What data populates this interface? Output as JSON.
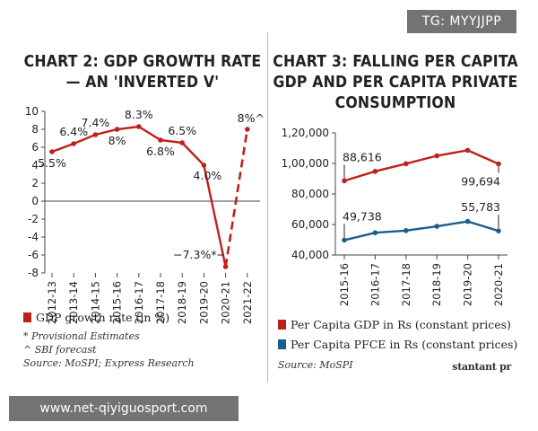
{
  "chart_data": [
    {
      "type": "line",
      "title_line1": "CHART 2: GDP GROWTH RATE",
      "title_line2": "— AN 'INVERTED V'",
      "categories": [
        "2012-13",
        "2013-14",
        "2014-15",
        "2015-16",
        "2016-17",
        "2017-18",
        "2018-19",
        "2019-20",
        "2020-21",
        "2021-22"
      ],
      "values": [
        5.5,
        6.4,
        7.4,
        8,
        8.3,
        6.8,
        6.5,
        4.0,
        -7.3,
        8
      ],
      "data_labels": [
        "5.5%",
        "6.4%",
        "7.4%",
        "8%",
        "8.3%",
        "6.8%",
        "6.5%",
        "4.0%",
        "−7.3%*",
        "8%^"
      ],
      "yticks": [
        "10",
        "8",
        "6",
        "4",
        "2",
        "0",
        "-2",
        "-4",
        "-6",
        "-8"
      ],
      "ylim": [
        -8,
        10
      ],
      "series_color": "#c0201c",
      "legend": "GDP growth rate (in %)",
      "notes": [
        "* Provisional Estimates",
        "^ SBI forecast",
        "Source: MoSPI; Express Research"
      ]
    },
    {
      "type": "line",
      "title_line1": "CHART 3: FALLING PER CAPITA",
      "title_line2": "GDP AND PER CAPITA PRIVATE",
      "title_line3": "CONSUMPTION",
      "categories": [
        "2015-16",
        "2016-17",
        "2017-18",
        "2018-19",
        "2019-20",
        "2020-21"
      ],
      "series": [
        {
          "name": "Per Capita GDP in Rs (constant prices)",
          "color": "#c0201c",
          "values": [
            88616,
            94800,
            99800,
            105000,
            108600,
            99694
          ]
        },
        {
          "name": "Per Capita PFCE in Rs (constant prices)",
          "color": "#1b5e8c",
          "values": [
            49738,
            54600,
            56000,
            58800,
            62000,
            55783
          ]
        }
      ],
      "data_labels": [
        "88,616",
        "99,694",
        "49,738",
        "55,783"
      ],
      "yticks": [
        "1,20,000",
        "1,00,000",
        "80,000",
        "60,000",
        "40,000"
      ],
      "ylim": [
        40000,
        120000
      ],
      "notes": [
        "Source: MoSPI"
      ],
      "brand": "stantant pr"
    }
  ],
  "overlay": {
    "tg": "TG: MYYJJPP",
    "url": "www.net-qiyiguosport.com"
  }
}
